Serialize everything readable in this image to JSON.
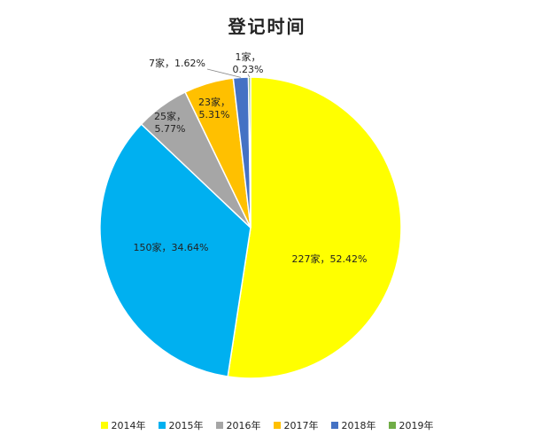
{
  "chart_data": {
    "type": "pie",
    "title": "登记时间",
    "legend_position": "bottom",
    "slices": [
      {
        "name": "2014年",
        "value": 227,
        "percent": 52.42,
        "label": "227家，52.42%",
        "color": "#FFFF00"
      },
      {
        "name": "2015年",
        "value": 150,
        "percent": 34.64,
        "label": "150家，34.64%",
        "color": "#00B0F0"
      },
      {
        "name": "2016年",
        "value": 25,
        "percent": 5.77,
        "label": "25家，5.77%",
        "color": "#A6A6A6"
      },
      {
        "name": "2017年",
        "value": 23,
        "percent": 5.31,
        "label": "23家，5.31%",
        "color": "#FFC000"
      },
      {
        "name": "2018年",
        "value": 7,
        "percent": 1.62,
        "label": "7家，1.62%",
        "color": "#4472C4"
      },
      {
        "name": "2019年",
        "value": 1,
        "percent": 0.23,
        "label": "1家，0.23%",
        "color": "#70AD47"
      }
    ]
  }
}
